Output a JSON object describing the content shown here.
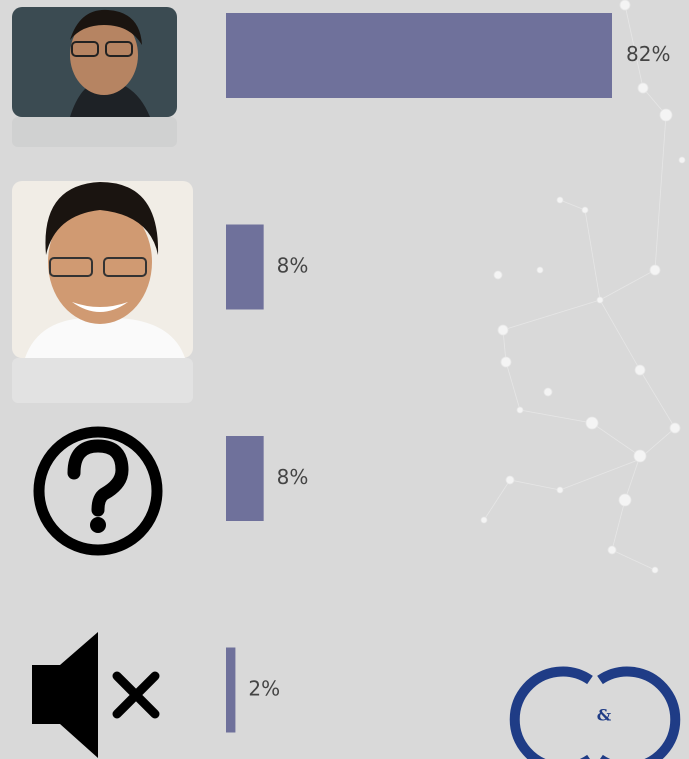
{
  "chart_data": {
    "type": "hbar",
    "categories": [
      null,
      null,
      null,
      null
    ],
    "values": [
      82,
      8,
      8,
      2
    ],
    "value_labels": [
      "82%",
      "8%",
      "8%",
      "2%"
    ],
    "color": "#6f719b"
  },
  "logo": {
    "text": "&"
  }
}
